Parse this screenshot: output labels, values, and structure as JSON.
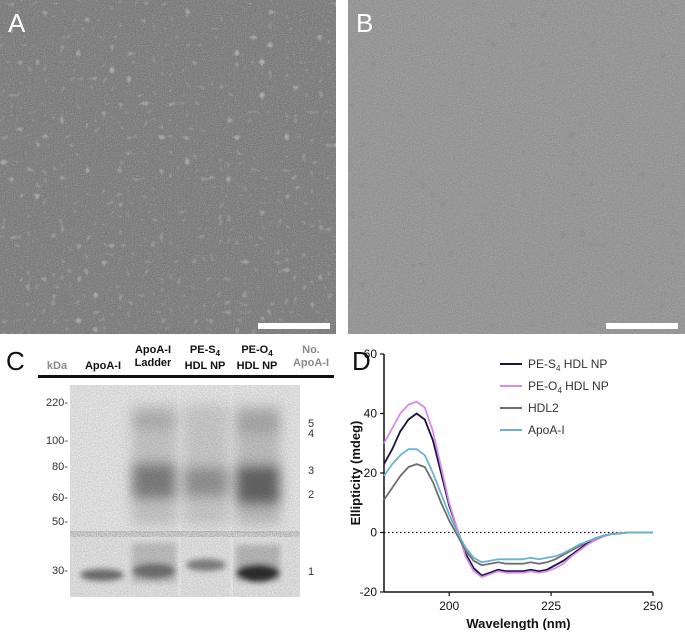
{
  "panels": {
    "a": {
      "label": "A"
    },
    "b": {
      "label": "B"
    },
    "c": {
      "label": "C"
    },
    "d": {
      "label": "D"
    }
  },
  "gel": {
    "kda_header": "kDa",
    "lanes": [
      {
        "line1": "ApoA-I",
        "line2": ""
      },
      {
        "line1": "ApoA-I",
        "line2": "Ladder"
      },
      {
        "line1": "PE-S",
        "sub": "4",
        "line2": "HDL NP"
      },
      {
        "line1": "PE-O",
        "sub": "4",
        "line2": "HDL NP"
      }
    ],
    "no_header_1": "No.",
    "no_header_2": "ApoA-I",
    "mw_markers": [
      "220-",
      "100-",
      "80-",
      "60-",
      "50-",
      "30-"
    ],
    "apo_numbers": [
      "5",
      "4",
      "3",
      "2",
      "1"
    ]
  },
  "chart_data": {
    "type": "line",
    "xlabel": "Wavelength (nm)",
    "ylabel": "Ellipticity (mdeg)",
    "xlim": [
      184,
      250
    ],
    "ylim": [
      -20,
      60
    ],
    "xticks": [
      "200",
      "225",
      "250"
    ],
    "yticks": [
      "-20",
      "0",
      "20",
      "40",
      "60"
    ],
    "legend_position": "top-right",
    "series": [
      {
        "name": "PE-S4 HDL NP",
        "label_main": "PE-S",
        "label_sub": "4",
        "label_tail": " HDL NP",
        "color": "#1a1340",
        "x": [
          184,
          186,
          188,
          190,
          192,
          194,
          196,
          198,
          200,
          202,
          204,
          206,
          208,
          210,
          212,
          214,
          216,
          218,
          220,
          222,
          224,
          226,
          228,
          230,
          232,
          234,
          236,
          238,
          240,
          242,
          244,
          246,
          248,
          250
        ],
        "y": [
          23,
          28,
          34,
          38,
          40,
          38,
          31,
          20,
          9,
          1,
          -7,
          -12,
          -14.5,
          -13.5,
          -12.5,
          -13,
          -13,
          -13,
          -12.5,
          -13,
          -12.5,
          -11,
          -9.5,
          -7.5,
          -5.5,
          -3.5,
          -2,
          -1,
          -0.5,
          -0.3,
          0,
          0,
          0,
          0
        ]
      },
      {
        "name": "PE-O4 HDL NP",
        "label_main": "PE-O",
        "label_sub": "4",
        "label_tail": " HDL NP",
        "color": "#d78ce8",
        "x": [
          184,
          186,
          188,
          190,
          192,
          194,
          196,
          198,
          200,
          202,
          204,
          206,
          208,
          210,
          212,
          214,
          216,
          218,
          220,
          222,
          224,
          226,
          228,
          230,
          232,
          234,
          236,
          238,
          240,
          242,
          244,
          246,
          248,
          250
        ],
        "y": [
          30,
          35,
          40,
          43,
          44,
          42,
          34,
          22,
          10,
          1,
          -8,
          -13,
          -15,
          -14,
          -13,
          -13.5,
          -13.5,
          -13.5,
          -13,
          -13.5,
          -13,
          -12,
          -10.5,
          -8,
          -6,
          -4,
          -2.5,
          -1.2,
          -0.5,
          -0.3,
          0,
          0,
          0,
          0
        ]
      },
      {
        "name": "HDL2",
        "label_main": "HDL2",
        "label_sub": "",
        "label_tail": "",
        "color": "#6e6e6e",
        "x": [
          184,
          186,
          188,
          190,
          192,
          194,
          196,
          198,
          200,
          202,
          204,
          206,
          208,
          210,
          212,
          214,
          216,
          218,
          220,
          222,
          224,
          226,
          228,
          230,
          232,
          234,
          236,
          238,
          240,
          242,
          244,
          246,
          248,
          250
        ],
        "y": [
          11,
          15,
          19,
          22,
          23,
          22,
          17,
          10,
          4,
          -1,
          -6,
          -9.5,
          -11,
          -10.5,
          -10,
          -10.5,
          -10.5,
          -10.5,
          -10,
          -10.5,
          -10,
          -9,
          -7.5,
          -6,
          -4.5,
          -3,
          -2,
          -1,
          -0.5,
          -0.2,
          0,
          0,
          0,
          0
        ]
      },
      {
        "name": "ApoA-I",
        "label_main": "ApoA-I",
        "label_sub": "",
        "label_tail": "",
        "color": "#6ab3cf",
        "x": [
          184,
          186,
          188,
          190,
          192,
          194,
          196,
          198,
          200,
          202,
          204,
          206,
          208,
          210,
          212,
          214,
          216,
          218,
          220,
          222,
          224,
          226,
          228,
          230,
          232,
          234,
          236,
          238,
          240,
          242,
          244,
          246,
          248,
          250
        ],
        "y": [
          19,
          23,
          26,
          28,
          28,
          26,
          20,
          13,
          6,
          0,
          -5,
          -8.5,
          -10,
          -9.5,
          -9,
          -9,
          -9,
          -9,
          -8.5,
          -9,
          -8.5,
          -8,
          -7,
          -5.5,
          -4,
          -3,
          -1.8,
          -1,
          -0.5,
          -0.2,
          0,
          0,
          0,
          0
        ]
      }
    ]
  }
}
